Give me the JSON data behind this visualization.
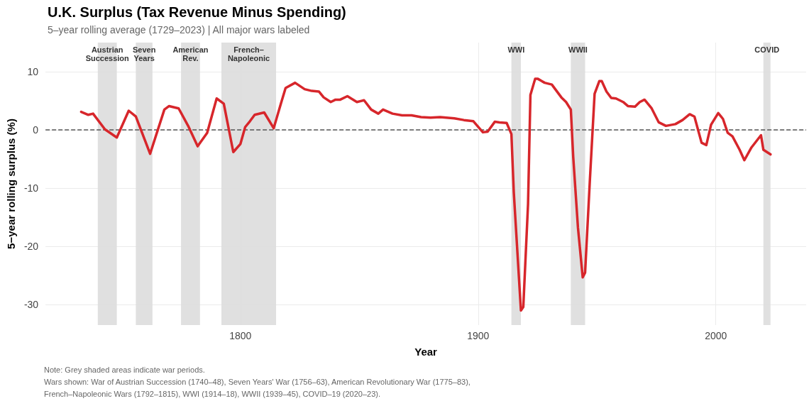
{
  "chart_data": {
    "type": "line",
    "title": "U.K. Surplus (Tax Revenue Minus Spending)",
    "subtitle": "5–year rolling average (1729–2023) | All major wars labeled",
    "xlabel": "Year",
    "ylabel": "5−year rolling surplus (%)",
    "x": [
      1733,
      1736,
      1738,
      1743,
      1748,
      1753,
      1756,
      1762,
      1768,
      1770,
      1774,
      1778,
      1782,
      1786,
      1790,
      1793,
      1797,
      1800,
      1802,
      1804,
      1806,
      1810,
      1814,
      1817,
      1819,
      1823,
      1827,
      1830,
      1833,
      1835,
      1838,
      1840,
      1842,
      1845,
      1849,
      1852,
      1855,
      1858,
      1860,
      1864,
      1868,
      1872,
      1876,
      1880,
      1884,
      1890,
      1894,
      1898,
      1902,
      1904,
      1907,
      1909,
      1912,
      1914,
      1915,
      1918,
      1919,
      1921,
      1922,
      1924,
      1925,
      1928,
      1931,
      1935,
      1937,
      1939,
      1940,
      1942,
      1944,
      1945,
      1947,
      1949,
      1951,
      1952,
      1954,
      1956,
      1958,
      1961,
      1963,
      1966,
      1968,
      1970,
      1973,
      1976,
      1979,
      1983,
      1986,
      1989,
      1991,
      1994,
      1996,
      1998,
      2001,
      2003,
      2005,
      2007,
      2010,
      2012,
      2015,
      2019,
      2020,
      2023
    ],
    "series": [
      {
        "color": "#d7262b",
        "values": [
          3.1,
          2.6,
          2.8,
          0.1,
          -1.3,
          3.3,
          2.3,
          -4.1,
          3.5,
          4.1,
          3.7,
          0.7,
          -2.8,
          -0.5,
          5.4,
          4.5,
          -3.8,
          -2.4,
          0.5,
          1.5,
          2.6,
          3.0,
          0.3,
          4.5,
          7.2,
          8.1,
          7.0,
          6.7,
          6.6,
          5.6,
          4.8,
          5.2,
          5.2,
          5.8,
          4.8,
          5.1,
          3.5,
          2.8,
          3.5,
          2.8,
          2.5,
          2.5,
          2.2,
          2.1,
          2.2,
          2.0,
          1.7,
          1.5,
          -0.4,
          -0.3,
          1.4,
          1.3,
          1.2,
          -0.7,
          -10.7,
          -31.0,
          -30.4,
          -12.7,
          6.0,
          8.8,
          8.8,
          8.1,
          7.8,
          5.6,
          4.8,
          3.5,
          -4.6,
          -16.8,
          -25.3,
          -24.5,
          -8.7,
          6.2,
          8.4,
          8.4,
          6.6,
          5.5,
          5.4,
          4.8,
          4.1,
          4.0,
          4.8,
          5.2,
          3.7,
          1.3,
          0.7,
          1.0,
          1.7,
          2.7,
          2.3,
          -2.2,
          -2.6,
          0.9,
          2.9,
          1.9,
          -0.5,
          -1.1,
          -3.4,
          -5.2,
          -3.0,
          -0.9,
          -3.4,
          -4.2
        ]
      }
    ],
    "xlim": [
      1718,
      2038
    ],
    "ylim": [
      -33.5,
      15
    ],
    "xticks": [
      1800,
      1900,
      2000
    ],
    "yticks": [
      -30,
      -20,
      -10,
      0,
      10
    ],
    "grid": true,
    "marker": "none",
    "line_style": "solid",
    "ref_lines": [
      {
        "axis": "y",
        "value": 0,
        "color": "#555555",
        "line_style": "dashed"
      }
    ],
    "bands": [
      {
        "axis": "x",
        "from": 1740,
        "to": 1748,
        "label": "Austrian\nSuccession",
        "color": "#dddddd"
      },
      {
        "axis": "x",
        "from": 1756,
        "to": 1763,
        "label": "Seven\nYears",
        "color": "#dddddd"
      },
      {
        "axis": "x",
        "from": 1775,
        "to": 1783,
        "label": "American\nRev.",
        "color": "#dddddd"
      },
      {
        "axis": "x",
        "from": 1792,
        "to": 1815,
        "label": "French–\nNapoleonic",
        "color": "#dddddd"
      },
      {
        "axis": "x",
        "from": 1914,
        "to": 1918,
        "label": "WWI",
        "color": "#dddddd"
      },
      {
        "axis": "x",
        "from": 1939,
        "to": 1945,
        "label": "WWII",
        "color": "#dddddd"
      },
      {
        "axis": "x",
        "from": 2020,
        "to": 2023,
        "label": "COVID",
        "color": "#dddddd"
      }
    ],
    "annotations": [
      "Note: Grey shaded areas indicate war periods.",
      "Wars shown: War of Austrian Succession (1740–48), Seven Years' War (1756–63), American Revolutionary War (1775–83),\nFrench–Napoleonic Wars (1792–1815), WWI (1914–18), WWII (1939–45), COVID–19 (2020–23)."
    ]
  }
}
